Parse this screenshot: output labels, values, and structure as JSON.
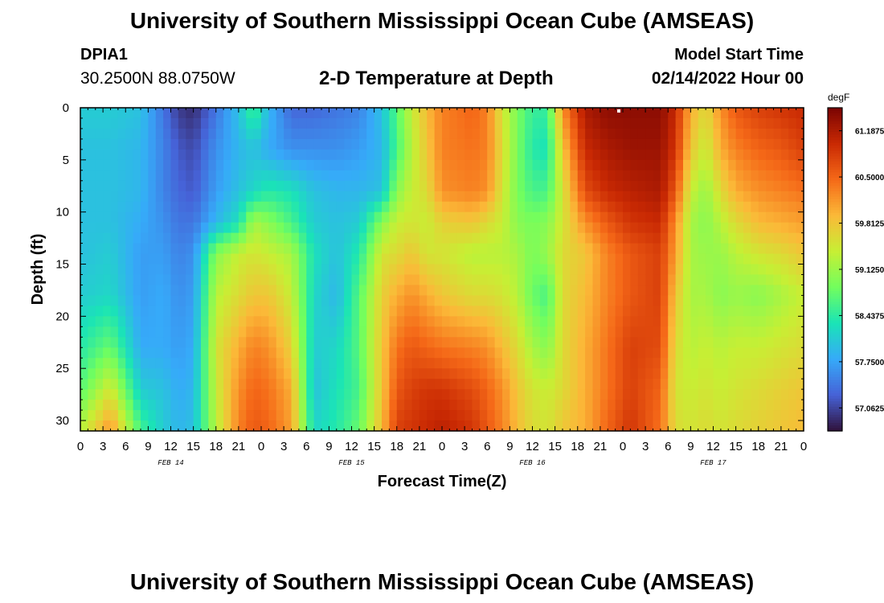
{
  "header": {
    "title": "University of Southern Mississippi Ocean Cube (AMSEAS)",
    "station": "DPIA1",
    "coords": "30.2500N  88.0750W",
    "subtitle": "2-D Temperature at Depth",
    "start_label": "Model Start Time",
    "start_value": "02/14/2022 Hour 00"
  },
  "footer": {
    "title": "University of Southern Mississippi Ocean Cube (AMSEAS)"
  },
  "chart_data": {
    "type": "heatmap",
    "title": "2-D Temperature at Depth",
    "xlabel": "Forecast Time(Z)",
    "ylabel": "Depth (ft)",
    "xlim": [
      0,
      96
    ],
    "ylim": [
      31,
      0
    ],
    "x_ticks": [
      {
        "hour": 0,
        "label": "0"
      },
      {
        "hour": 3,
        "label": "3"
      },
      {
        "hour": 6,
        "label": "6"
      },
      {
        "hour": 9,
        "label": "9"
      },
      {
        "hour": 12,
        "label": "12"
      },
      {
        "hour": 15,
        "label": "15"
      },
      {
        "hour": 18,
        "label": "18"
      },
      {
        "hour": 21,
        "label": "21"
      },
      {
        "hour": 24,
        "label": "0"
      },
      {
        "hour": 27,
        "label": "3"
      },
      {
        "hour": 30,
        "label": "6"
      },
      {
        "hour": 33,
        "label": "9"
      },
      {
        "hour": 36,
        "label": "12"
      },
      {
        "hour": 39,
        "label": "15"
      },
      {
        "hour": 42,
        "label": "18"
      },
      {
        "hour": 45,
        "label": "21"
      },
      {
        "hour": 48,
        "label": "0"
      },
      {
        "hour": 51,
        "label": "3"
      },
      {
        "hour": 54,
        "label": "6"
      },
      {
        "hour": 57,
        "label": "9"
      },
      {
        "hour": 60,
        "label": "12"
      },
      {
        "hour": 63,
        "label": "15"
      },
      {
        "hour": 66,
        "label": "18"
      },
      {
        "hour": 69,
        "label": "21"
      },
      {
        "hour": 72,
        "label": "0"
      },
      {
        "hour": 75,
        "label": "3"
      },
      {
        "hour": 78,
        "label": "6"
      },
      {
        "hour": 81,
        "label": "9"
      },
      {
        "hour": 84,
        "label": "12"
      },
      {
        "hour": 87,
        "label": "15"
      },
      {
        "hour": 90,
        "label": "18"
      },
      {
        "hour": 93,
        "label": "21"
      },
      {
        "hour": 96,
        "label": "0"
      }
    ],
    "day_labels": [
      {
        "hour": 12,
        "label": "FEB 14"
      },
      {
        "hour": 36,
        "label": "FEB 15"
      },
      {
        "hour": 60,
        "label": "FEB 16"
      },
      {
        "hour": 84,
        "label": "FEB 17"
      }
    ],
    "y_ticks": [
      0,
      5,
      10,
      15,
      20,
      25,
      30
    ],
    "colorbar": {
      "unit": "degF",
      "min": 56.72,
      "max": 61.53,
      "labels": [
        "61.1875",
        "60.5000",
        "59.8125",
        "59.1250",
        "58.4375",
        "57.7500",
        "57.0625"
      ],
      "colors": [
        "#30123b",
        "#4662d7",
        "#36aaf9",
        "#1ae4b6",
        "#72fe5e",
        "#c7ef34",
        "#fbb938",
        "#f56918",
        "#c92903",
        "#7a0403"
      ]
    },
    "depths_ft": [
      0,
      4,
      8,
      11,
      14,
      18,
      23,
      27,
      31
    ],
    "hour_keys": [
      0,
      4,
      8,
      11,
      13,
      15,
      18,
      21,
      23,
      25,
      28,
      31,
      34,
      37,
      40,
      42,
      44,
      46,
      48,
      52,
      54,
      56,
      58,
      60,
      62,
      64,
      67,
      70,
      73,
      77,
      79,
      81,
      83,
      85,
      87,
      90,
      93,
      96
    ],
    "temperature_degF": [
      [
        58.1,
        58.0,
        58.0,
        58.0,
        58.0,
        58.1,
        58.4,
        58.7,
        59.3
      ],
      [
        58.1,
        58.0,
        58.0,
        58.0,
        58.1,
        58.2,
        58.8,
        59.5,
        60.2
      ],
      [
        58.0,
        57.9,
        57.9,
        57.8,
        57.7,
        57.7,
        57.8,
        58.1,
        58.6
      ],
      [
        57.4,
        57.5,
        57.5,
        57.6,
        57.7,
        57.8,
        57.8,
        58.0,
        58.1
      ],
      [
        57.0,
        57.2,
        57.3,
        57.4,
        57.5,
        57.6,
        57.7,
        57.8,
        57.9
      ],
      [
        56.9,
        57.1,
        57.2,
        57.4,
        57.6,
        57.7,
        57.8,
        57.9,
        58.0
      ],
      [
        57.4,
        57.6,
        57.7,
        57.9,
        59.0,
        59.3,
        59.5,
        59.4,
        59.3
      ],
      [
        58.0,
        57.9,
        58.0,
        58.3,
        59.4,
        59.6,
        60.0,
        60.2,
        60.3
      ],
      [
        58.6,
        58.0,
        58.2,
        59.2,
        59.5,
        59.8,
        60.3,
        60.5,
        60.6
      ],
      [
        57.9,
        57.8,
        58.4,
        59.0,
        59.4,
        59.8,
        60.2,
        60.4,
        60.5
      ],
      [
        57.3,
        57.6,
        58.3,
        58.6,
        59.2,
        59.4,
        59.7,
        60.0,
        60.1
      ],
      [
        57.3,
        57.6,
        58.0,
        58.1,
        58.3,
        58.2,
        58.1,
        58.0,
        58.2
      ],
      [
        57.4,
        57.6,
        57.9,
        58.0,
        58.0,
        57.9,
        58.2,
        58.3,
        58.4
      ],
      [
        57.5,
        57.7,
        57.9,
        58.1,
        58.4,
        58.7,
        58.7,
        58.6,
        58.8
      ],
      [
        58.0,
        57.9,
        58.0,
        59.0,
        59.5,
        59.7,
        59.8,
        59.8,
        59.9
      ],
      [
        58.7,
        58.6,
        59.0,
        59.4,
        59.6,
        60.0,
        60.4,
        60.6,
        60.8
      ],
      [
        59.4,
        59.3,
        59.4,
        59.5,
        59.8,
        60.2,
        60.6,
        60.8,
        60.9
      ],
      [
        59.9,
        59.8,
        59.6,
        59.4,
        59.5,
        60.0,
        60.5,
        60.9,
        61.0
      ],
      [
        60.3,
        60.3,
        60.2,
        59.7,
        59.5,
        59.8,
        60.4,
        60.9,
        61.1
      ],
      [
        60.5,
        60.4,
        60.3,
        59.8,
        59.3,
        59.6,
        60.3,
        60.7,
        60.9
      ],
      [
        60.3,
        60.3,
        60.2,
        59.6,
        59.3,
        59.6,
        60.2,
        60.5,
        60.6
      ],
      [
        59.5,
        59.6,
        59.5,
        59.4,
        59.3,
        59.5,
        59.9,
        60.2,
        60.3
      ],
      [
        58.9,
        58.9,
        58.9,
        59.0,
        59.2,
        59.3,
        59.6,
        59.8,
        59.9
      ],
      [
        58.5,
        58.4,
        58.6,
        58.9,
        58.9,
        58.8,
        59.2,
        59.5,
        59.6
      ],
      [
        58.5,
        58.3,
        58.6,
        59.0,
        59.1,
        58.6,
        59.0,
        59.4,
        59.5
      ],
      [
        60.2,
        59.8,
        59.5,
        59.5,
        59.6,
        59.6,
        59.6,
        59.6,
        59.8
      ],
      [
        61.2,
        61.0,
        60.7,
        60.2,
        59.8,
        59.9,
        60.0,
        60.0,
        60.0
      ],
      [
        61.4,
        61.2,
        61.0,
        60.6,
        60.3,
        60.3,
        60.4,
        60.4,
        60.5
      ],
      [
        61.4,
        61.3,
        61.1,
        60.9,
        60.6,
        60.6,
        60.8,
        60.8,
        60.9
      ],
      [
        61.4,
        61.3,
        61.2,
        61.0,
        60.8,
        60.8,
        60.7,
        60.5,
        60.4
      ],
      [
        61.0,
        60.9,
        60.6,
        60.2,
        60.1,
        59.8,
        59.6,
        59.5,
        59.6
      ],
      [
        60.0,
        59.8,
        59.4,
        59.2,
        59.2,
        59.2,
        59.3,
        59.4,
        59.5
      ],
      [
        59.6,
        59.4,
        59.1,
        59.0,
        59.1,
        59.2,
        59.4,
        59.5,
        59.6
      ],
      [
        60.2,
        60.0,
        59.6,
        59.3,
        59.1,
        59.0,
        59.3,
        59.4,
        59.5
      ],
      [
        60.6,
        60.3,
        60.0,
        59.6,
        59.3,
        59.1,
        59.4,
        59.5,
        59.6
      ],
      [
        60.8,
        60.5,
        60.2,
        59.9,
        59.5,
        59.0,
        59.4,
        59.6,
        59.7
      ],
      [
        60.9,
        60.6,
        60.3,
        60.0,
        59.6,
        59.2,
        59.5,
        59.7,
        59.8
      ],
      [
        61.0,
        60.8,
        60.4,
        60.1,
        59.8,
        59.4,
        59.6,
        59.8,
        59.9
      ]
    ]
  }
}
